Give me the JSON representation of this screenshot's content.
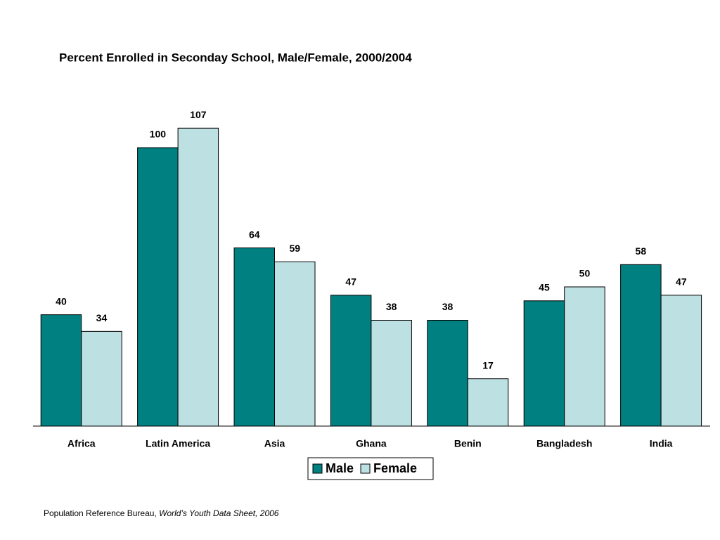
{
  "chart_data": {
    "type": "bar",
    "title": "Percent Enrolled in Seconday School, Male/Female, 2000/2004",
    "categories": [
      "Africa",
      "Latin America",
      "Asia",
      "Ghana",
      "Benin",
      "Bangladesh",
      "India"
    ],
    "series": [
      {
        "name": "Male",
        "color": "#008080",
        "values": [
          40,
          100,
          64,
          47,
          38,
          45,
          58
        ]
      },
      {
        "name": "Female",
        "color": "#bde0e3",
        "values": [
          34,
          107,
          59,
          38,
          17,
          50,
          47
        ]
      }
    ],
    "source": {
      "text": "Population Reference Bureau,",
      "italic": "World’s Youth Data Sheet, 2006"
    }
  }
}
